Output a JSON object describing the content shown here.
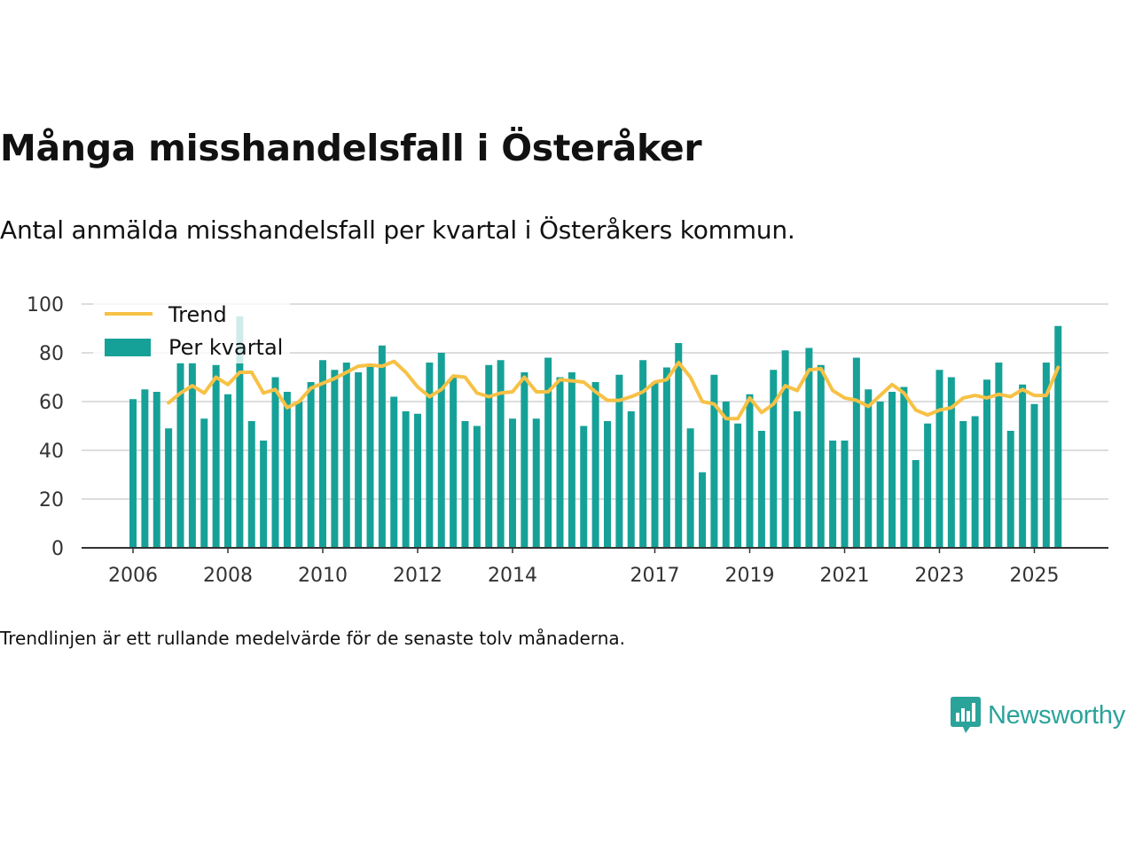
{
  "title": "Många misshandelsfall i Österåker",
  "subtitle": "Antal anmälda misshandelsfall per kvartal i Österåkers kommun.",
  "note": "Trendlinjen är ett rullande medelvärde för de senaste tolv månaderna.",
  "brand": {
    "name": "Newsworthy",
    "icon": "bar-chart-speech-bubble-icon"
  },
  "colors": {
    "bar": "#16a198",
    "trend": "#f7c145",
    "grid": "#dddddd",
    "axis": "#333333",
    "text": "#333333"
  },
  "chart_data": {
    "type": "bar",
    "title": "Många misshandelsfall i Österåker",
    "xlabel": "",
    "ylabel": "",
    "ylim": [
      0,
      100
    ],
    "yticks": [
      0,
      20,
      40,
      60,
      80,
      100
    ],
    "xticks": [
      "2006",
      "2008",
      "2010",
      "2012",
      "2014",
      "2017",
      "2019",
      "2021",
      "2023",
      "2025"
    ],
    "xtick_index": [
      0,
      8,
      16,
      24,
      32,
      44,
      52,
      60,
      68,
      76
    ],
    "legend": {
      "placement": "top-left",
      "entries": [
        "Trend",
        "Per kvartal"
      ]
    },
    "categories": [
      "2006 Q1",
      "2006 Q2",
      "2006 Q3",
      "2006 Q4",
      "2007 Q1",
      "2007 Q2",
      "2007 Q3",
      "2007 Q4",
      "2008 Q1",
      "2008 Q2",
      "2008 Q3",
      "2008 Q4",
      "2009 Q1",
      "2009 Q2",
      "2009 Q3",
      "2009 Q4",
      "2010 Q1",
      "2010 Q2",
      "2010 Q3",
      "2010 Q4",
      "2011 Q1",
      "2011 Q2",
      "2011 Q3",
      "2011 Q4",
      "2012 Q1",
      "2012 Q2",
      "2012 Q3",
      "2012 Q4",
      "2013 Q1",
      "2013 Q2",
      "2013 Q3",
      "2013 Q4",
      "2014 Q1",
      "2014 Q2",
      "2014 Q3",
      "2014 Q4",
      "2015 Q1",
      "2015 Q2",
      "2015 Q3",
      "2015 Q4",
      "2016 Q1",
      "2016 Q2",
      "2016 Q3",
      "2016 Q4",
      "2017 Q1",
      "2017 Q2",
      "2017 Q3",
      "2017 Q4",
      "2018 Q1",
      "2018 Q2",
      "2018 Q3",
      "2018 Q4",
      "2019 Q1",
      "2019 Q2",
      "2019 Q3",
      "2019 Q4",
      "2020 Q1",
      "2020 Q2",
      "2020 Q3",
      "2020 Q4",
      "2021 Q1",
      "2021 Q2",
      "2021 Q3",
      "2021 Q4",
      "2022 Q1",
      "2022 Q2",
      "2022 Q3",
      "2022 Q4",
      "2023 Q1",
      "2023 Q2",
      "2023 Q3",
      "2023 Q4",
      "2024 Q1",
      "2024 Q2",
      "2024 Q3",
      "2024 Q4",
      "2025 Q1",
      "2025 Q2",
      "2025 Q3"
    ],
    "series": [
      {
        "name": "Per kvartal",
        "type": "bar",
        "values": [
          61,
          65,
          64,
          49,
          76,
          76,
          53,
          75,
          63,
          95,
          52,
          44,
          70,
          64,
          60,
          68,
          77,
          73,
          76,
          72,
          75,
          83,
          62,
          56,
          55,
          76,
          80,
          70,
          52,
          50,
          75,
          77,
          53,
          72,
          53,
          78,
          70,
          72,
          50,
          68,
          52,
          71,
          56,
          77,
          68,
          74,
          84,
          49,
          31,
          71,
          60,
          51,
          63,
          48,
          73,
          81,
          56,
          82,
          75,
          44,
          44,
          78,
          65,
          60,
          64,
          66,
          36,
          51,
          73,
          70,
          52,
          54,
          69,
          76,
          48,
          67,
          59,
          76,
          91
        ]
      },
      {
        "name": "Trend",
        "type": "line",
        "values": [
          null,
          null,
          null,
          59.5,
          63.5,
          66.5,
          63.5,
          70,
          67,
          72,
          72,
          63.5,
          65,
          57.5,
          60,
          65.5,
          67.5,
          69.5,
          72,
          74.5,
          75,
          74.5,
          76.5,
          72,
          66,
          62,
          65,
          70.5,
          70,
          63.5,
          62,
          63.5,
          64,
          70,
          64,
          64,
          69,
          68.5,
          68,
          64,
          60.5,
          60.5,
          62,
          64,
          68,
          69,
          76,
          70,
          60,
          59,
          53,
          53,
          61.5,
          55.5,
          59,
          66.5,
          64.5,
          73,
          73.5,
          64.5,
          61.5,
          60.5,
          58,
          62.5,
          67,
          63.5,
          56.5,
          54.5,
          56.5,
          57.5,
          61.5,
          62.5,
          61.5,
          63,
          62,
          65,
          62.5,
          62.5,
          74
        ]
      }
    ]
  }
}
